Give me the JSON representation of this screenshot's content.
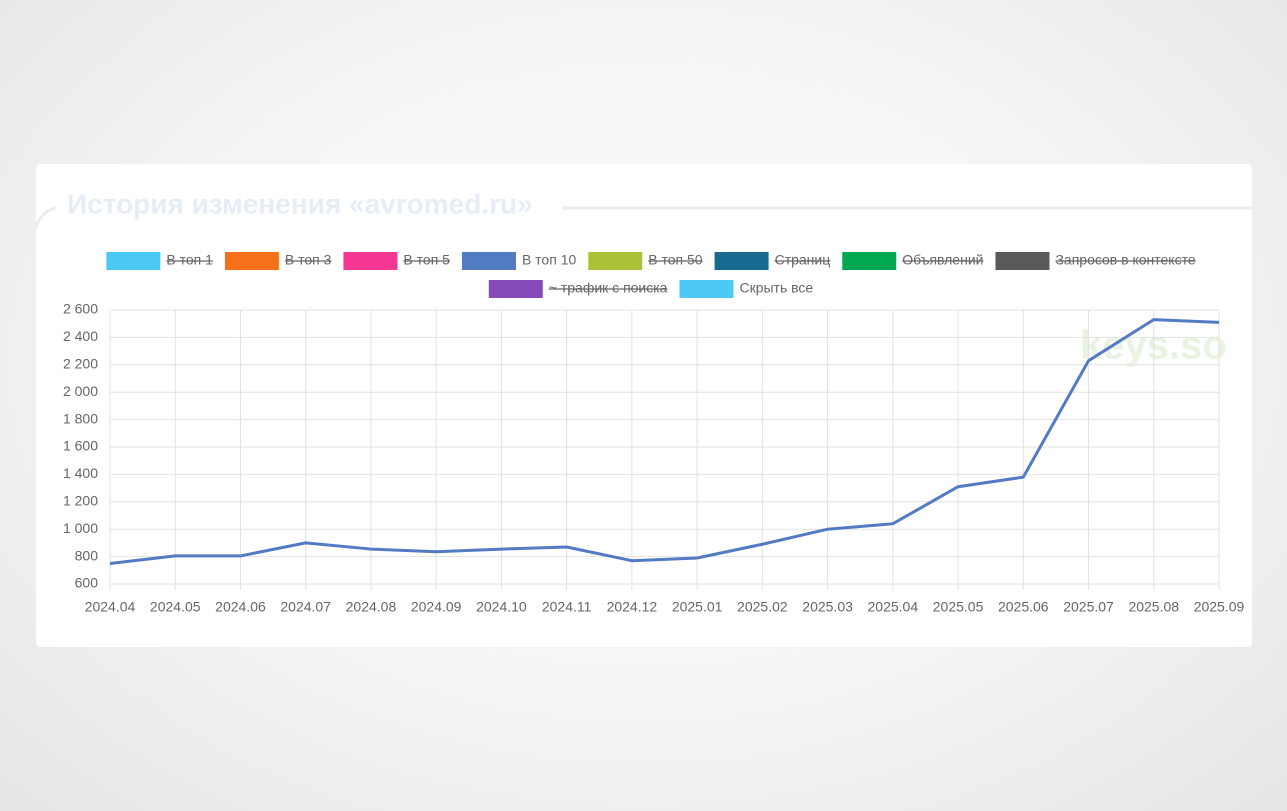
{
  "chart_data": {
    "type": "line",
    "title": "История изменения «avromed.ru»",
    "watermark": "keys.so",
    "categories": [
      "2024.04",
      "2024.05",
      "2024.06",
      "2024.07",
      "2024.08",
      "2024.09",
      "2024.10",
      "2024.11",
      "2024.12",
      "2025.01",
      "2025.02",
      "2025.03",
      "2025.04",
      "2025.05",
      "2025.06",
      "2025.07",
      "2025.08",
      "2025.09"
    ],
    "series": [
      {
        "name": "В топ 1",
        "color": "#4dc9f6",
        "hidden": true
      },
      {
        "name": "В топ 3",
        "color": "#f67019",
        "hidden": true
      },
      {
        "name": "В топ 5",
        "color": "#f53794",
        "hidden": true
      },
      {
        "name": "В топ 10",
        "color": "#537bc4",
        "hidden": false,
        "values": [
          750,
          805,
          805,
          900,
          855,
          835,
          855,
          870,
          770,
          790,
          890,
          1000,
          1040,
          1310,
          1380,
          2230,
          2530,
          2510
        ]
      },
      {
        "name": "В топ 50",
        "color": "#acc236",
        "hidden": true
      },
      {
        "name": "Страниц",
        "color": "#166a8f",
        "hidden": true
      },
      {
        "name": "Объявлений",
        "color": "#00a950",
        "hidden": true
      },
      {
        "name": "Запросов в контексте",
        "color": "#58595b",
        "hidden": true
      },
      {
        "name": "~ трафик с поиска",
        "color": "#8549ba",
        "hidden": true
      }
    ],
    "legend_button": {
      "label": "Скрыть все",
      "color": "#4dc9f6"
    },
    "ylim": [
      600,
      2600
    ],
    "yticks": [
      600,
      800,
      {
        "value": 1000,
        "label": "1 000"
      },
      {
        "value": 1200,
        "label": "1 200"
      },
      {
        "value": 1400,
        "label": "1 400"
      },
      {
        "value": 1600,
        "label": "1 600"
      },
      {
        "value": 1800,
        "label": "1 800"
      },
      {
        "value": 2000,
        "label": "2 000"
      },
      {
        "value": 2200,
        "label": "2 200"
      },
      {
        "value": 2400,
        "label": "2 400"
      },
      {
        "value": 2600,
        "label": "2 600"
      }
    ],
    "grid": true
  }
}
